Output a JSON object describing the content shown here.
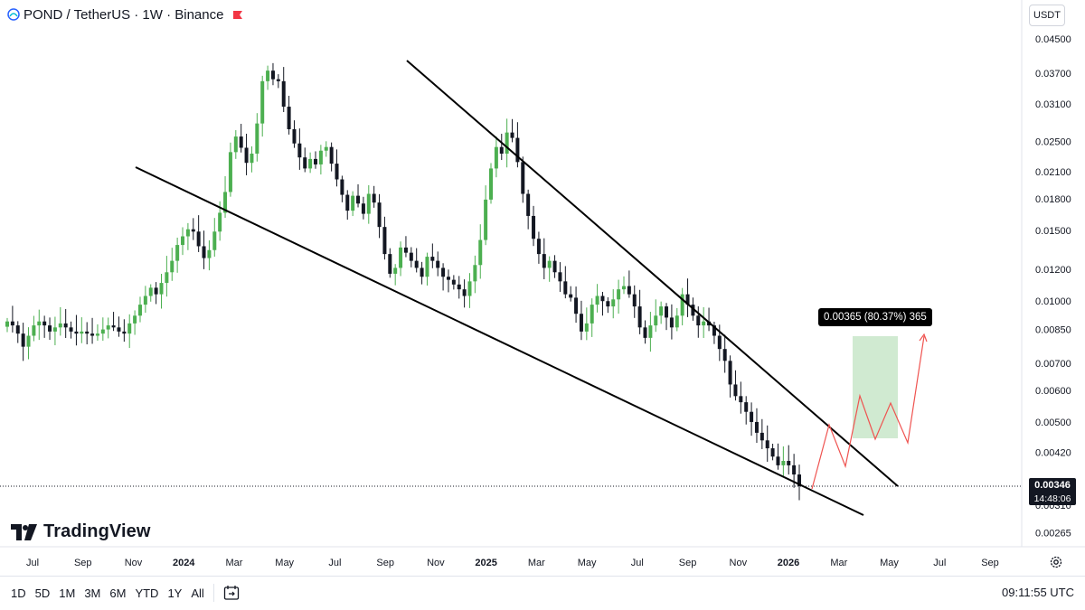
{
  "header": {
    "title": "POND / TetherUS · 1W · Binance",
    "flag_color": "#f23645"
  },
  "currency": "USDT",
  "logo": {
    "text": "TradingView",
    "icon": "tradingview-logo-icon"
  },
  "current_price": {
    "value": "0.00346",
    "countdown": "14:48:06"
  },
  "measure": {
    "label": "0.00365 (80.37%) 365"
  },
  "toolbar": {
    "timeframes": [
      "1D",
      "5D",
      "1M",
      "3M",
      "6M",
      "YTD",
      "1Y",
      "All"
    ],
    "compare_icon": "date-range-icon",
    "clock": "09:11:55 UTC",
    "settings_icon": "gear-icon"
  },
  "chart_data": {
    "type": "candlestick",
    "symbol": "POND / TetherUS",
    "interval": "1W",
    "exchange": "Binance",
    "y_scale": "log",
    "y_ticks": [
      "0.04500",
      "0.03700",
      "0.03100",
      "0.02500",
      "0.02100",
      "0.01800",
      "0.01500",
      "0.01200",
      "0.01000",
      "0.00850",
      "0.00700",
      "0.00600",
      "0.00500",
      "0.00420",
      "0.00310",
      "0.00265"
    ],
    "x_ticks": [
      "Jul",
      "Sep",
      "Nov",
      "2024",
      "Mar",
      "May",
      "Jul",
      "Sep",
      "Nov",
      "2025",
      "Mar",
      "May",
      "Jul",
      "Sep",
      "Nov",
      "2026",
      "Mar",
      "May",
      "Jul",
      "Sep"
    ],
    "colors": {
      "up": "#4caf50",
      "down": "#131722",
      "line": "#000000",
      "projection": "#ef5350",
      "measure_fill": "#c8e6c9"
    },
    "close_series_approx": [
      0.0089,
      0.0087,
      0.0083,
      0.0077,
      0.0082,
      0.0087,
      0.0089,
      0.0087,
      0.0084,
      0.0086,
      0.0088,
      0.0086,
      0.0084,
      0.0083,
      0.0084,
      0.0083,
      0.0082,
      0.0083,
      0.0085,
      0.0087,
      0.0086,
      0.0084,
      0.0083,
      0.0088,
      0.0092,
      0.0098,
      0.0103,
      0.0108,
      0.0104,
      0.0111,
      0.0118,
      0.0126,
      0.0138,
      0.0145,
      0.0151,
      0.0149,
      0.0137,
      0.0128,
      0.0134,
      0.0149,
      0.0166,
      0.0187,
      0.0235,
      0.0257,
      0.0241,
      0.0221,
      0.0233,
      0.0277,
      0.0353,
      0.0375,
      0.0357,
      0.0353,
      0.0305,
      0.0268,
      0.0247,
      0.0228,
      0.0214,
      0.0226,
      0.0219,
      0.0237,
      0.0242,
      0.022,
      0.0201,
      0.0184,
      0.0168,
      0.0183,
      0.0175,
      0.0165,
      0.0185,
      0.0176,
      0.0153,
      0.0131,
      0.0117,
      0.0121,
      0.0136,
      0.0132,
      0.0126,
      0.0121,
      0.0115,
      0.0129,
      0.0126,
      0.0121,
      0.0115,
      0.0113,
      0.011,
      0.0107,
      0.0103,
      0.0112,
      0.0123,
      0.0142,
      0.0179,
      0.0214,
      0.0242,
      0.0233,
      0.0263,
      0.0255,
      0.0222,
      0.0185,
      0.0163,
      0.0143,
      0.0131,
      0.0121,
      0.0126,
      0.0118,
      0.0112,
      0.0104,
      0.0102,
      0.0093,
      0.0084,
      0.0088,
      0.0098,
      0.0103,
      0.01,
      0.0097,
      0.0101,
      0.0107,
      0.0109,
      0.0104,
      0.0097,
      0.0086,
      0.0081,
      0.0087,
      0.0092,
      0.0097,
      0.0091,
      0.0086,
      0.0092,
      0.0104,
      0.0098,
      0.0092,
      0.0087,
      0.0089,
      0.0087,
      0.0082,
      0.0076,
      0.0071,
      0.0062,
      0.0058,
      0.0056,
      0.0053,
      0.005,
      0.0047,
      0.0045,
      0.0043,
      0.0041,
      0.0039,
      0.004,
      0.0039,
      0.0037,
      0.00346
    ]
  }
}
